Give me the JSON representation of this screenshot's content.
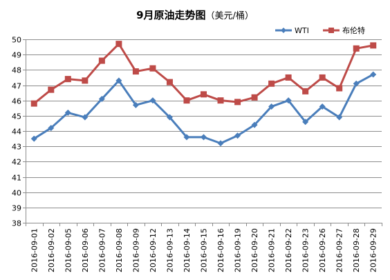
{
  "chart_data": {
    "type": "line",
    "title": "9月原油走势图",
    "subtitle": "（美元/桶）",
    "xlabel": "",
    "ylabel": "",
    "ylim": [
      38,
      50
    ],
    "ytick_step": 1,
    "grid": true,
    "legend_position": "top-right",
    "categories": [
      "2016-09-01",
      "2016-09-02",
      "2016-09-05",
      "2016-09-06",
      "2016-09-07",
      "2016-09-08",
      "2016-09-09",
      "2016-09-12",
      "2016-09-13",
      "2016-09-14",
      "2016-09-15",
      "2016-09-16",
      "2016-09-19",
      "2016-09-20",
      "2016-09-21",
      "2016-09-22",
      "2016-09-23",
      "2016-09-26",
      "2016-09-27",
      "2016-09-28",
      "2016-09-29"
    ],
    "series": [
      {
        "name": "WTI",
        "color": "#4A7EBB",
        "marker": "diamond",
        "values": [
          43.5,
          44.2,
          45.2,
          44.9,
          46.1,
          47.3,
          45.7,
          46.0,
          44.9,
          43.6,
          43.6,
          43.2,
          43.7,
          44.4,
          45.6,
          46.0,
          44.6,
          45.6,
          44.9,
          47.1,
          47.7
        ]
      },
      {
        "name": "布伦特",
        "color": "#BE4B48",
        "marker": "square",
        "values": [
          45.8,
          46.7,
          47.4,
          47.3,
          48.6,
          49.7,
          47.9,
          48.1,
          47.2,
          46.0,
          46.4,
          46.0,
          45.9,
          46.2,
          47.1,
          47.5,
          46.6,
          47.5,
          46.8,
          49.4,
          49.6
        ]
      }
    ]
  }
}
